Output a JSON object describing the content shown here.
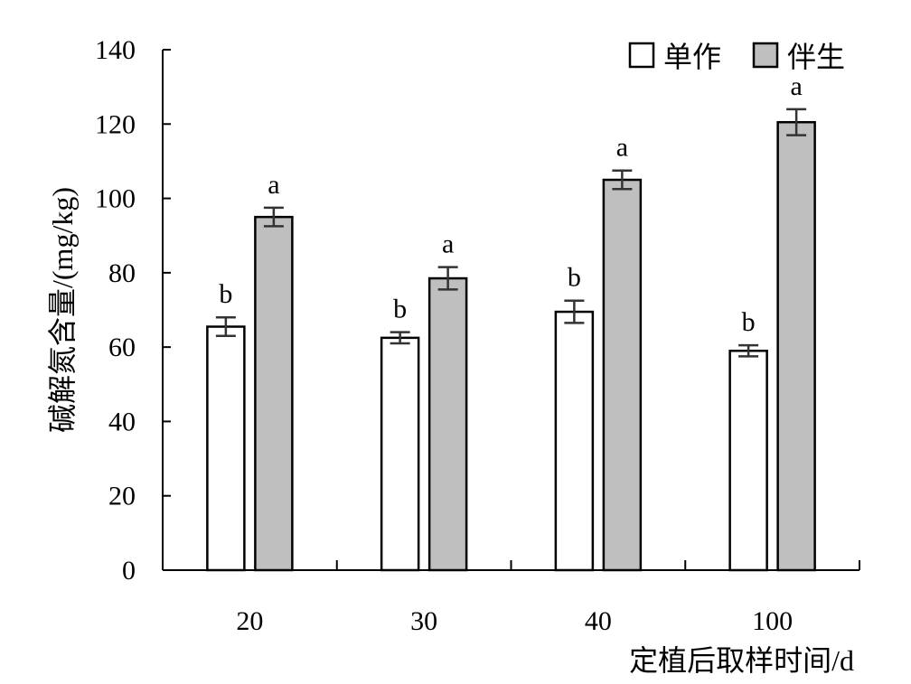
{
  "chart_data": {
    "type": "bar",
    "title": "",
    "xlabel": "定植后取样时间/d",
    "ylabel": "碱解氮含量/(mg/kg)",
    "ylim": [
      0,
      140
    ],
    "yticks": [
      0,
      20,
      40,
      60,
      80,
      100,
      120,
      140
    ],
    "categories": [
      "20",
      "30",
      "40",
      "100"
    ],
    "grid": false,
    "legend_position": "top-right",
    "series": [
      {
        "name": "单作",
        "color": "#ffffff",
        "values": [
          65.5,
          62.5,
          69.5,
          59
        ],
        "errors": [
          2.5,
          1.5,
          3,
          1.5
        ],
        "labels": [
          "b",
          "b",
          "b",
          "b"
        ]
      },
      {
        "name": "伴生",
        "color": "#bfbfbf",
        "values": [
          95,
          78.5,
          105,
          120.5
        ],
        "errors": [
          2.5,
          3,
          2.5,
          3.5
        ],
        "labels": [
          "a",
          "a",
          "a",
          "a"
        ]
      }
    ]
  }
}
